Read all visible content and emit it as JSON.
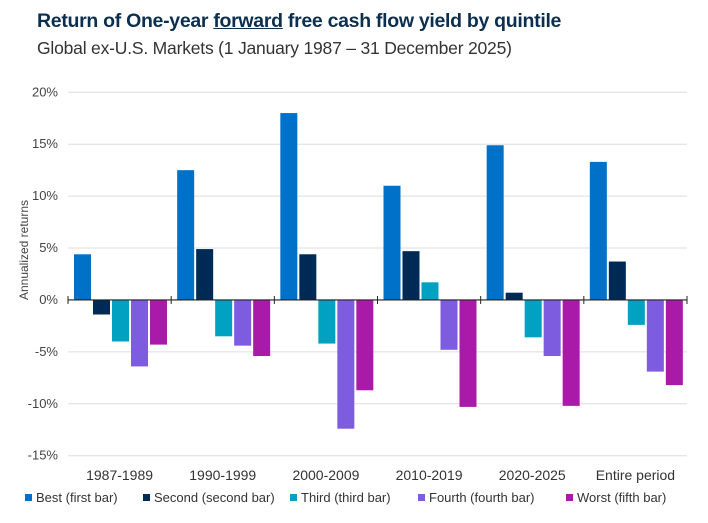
{
  "chart_data": {
    "type": "bar",
    "title_parts": [
      "Return of One-year ",
      "forward",
      " free cash flow yield by quintile"
    ],
    "subtitle": "Global ex-U.S. Markets (1 January 1987 – 31 December 2025)",
    "ylabel": "Annualized returns",
    "xlabel": "",
    "ylim": [
      -15,
      20
    ],
    "yticks": [
      20,
      15,
      10,
      5,
      0,
      -5,
      -10,
      -15
    ],
    "ytick_labels": [
      "20%",
      "15%",
      "10%",
      "5%",
      "0%",
      "-5%",
      "-10%",
      "-15%"
    ],
    "grid": true,
    "legend_position": "bottom",
    "categories": [
      "1987-1989",
      "1990-1999",
      "2000-2009",
      "2010-2019",
      "2020-2025",
      "Entire period"
    ],
    "series": [
      {
        "name": "Best (first bar)",
        "color": "#0071c9",
        "values": [
          4.4,
          12.5,
          18.0,
          11.0,
          14.9,
          13.3
        ]
      },
      {
        "name": "Second (second bar)",
        "color": "#002a56",
        "values": [
          -1.4,
          4.9,
          4.4,
          4.7,
          0.7,
          3.7
        ]
      },
      {
        "name": "Third (third bar)",
        "color": "#00a1c1",
        "values": [
          -4.0,
          -3.5,
          -4.2,
          1.7,
          -3.6,
          -2.4
        ]
      },
      {
        "name": "Fourth (fourth bar)",
        "color": "#7d5ce0",
        "values": [
          -6.4,
          -4.4,
          -12.4,
          -4.8,
          -5.4,
          -6.9
        ]
      },
      {
        "name": "Worst (fifth bar)",
        "color": "#a91aa8",
        "values": [
          -4.3,
          -5.4,
          -8.7,
          -10.3,
          -10.2,
          -8.2
        ]
      }
    ]
  }
}
